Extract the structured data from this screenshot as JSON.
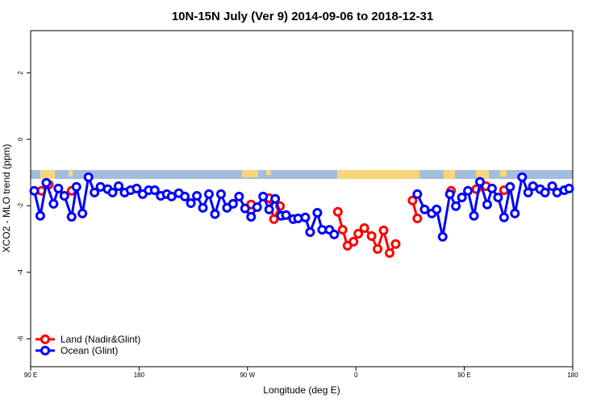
{
  "chart_data": {
    "type": "line",
    "title": "10N-15N July (Ver 9)   2014-09-06 to 2018-12-31",
    "x_label": "Longitude (deg E)",
    "y_label": "XCO2 - MLO trend (ppm)",
    "xlim": [
      90,
      540
    ],
    "ylim": [
      -6.84,
      3.27
    ],
    "xticks": [
      {
        "value": 90,
        "label": "90 E"
      },
      180,
      {
        "value": 270,
        "label": "90 W"
      },
      {
        "value": 360,
        "label": "0"
      },
      {
        "value": 450,
        "label": "90 E"
      },
      {
        "value": 540,
        "label": "180"
      }
    ],
    "yticks": [
      -6,
      -4,
      -2,
      0,
      2
    ],
    "legend": "bottom-left",
    "series": [
      {
        "name": "Land (Nadir&Glint)",
        "color": "#ff0000",
        "x": [
          99,
          105,
          110,
          124,
          200,
          273,
          280,
          288,
          292,
          297,
          320,
          345,
          349,
          353,
          358,
          362,
          367,
          373,
          378,
          383,
          388,
          393,
          400,
          407,
          411,
          420,
          439,
          445,
          460,
          468,
          475,
          483
        ],
        "values": [
          -1.55,
          -1.36,
          null,
          -1.55,
          null,
          -1.96,
          null,
          -1.77,
          -2.4,
          -2.01,
          null,
          -2.18,
          -2.72,
          -3.2,
          -3.08,
          -2.84,
          -2.67,
          -2.91,
          -3.3,
          -2.74,
          -3.42,
          -3.15,
          null,
          -1.84,
          -2.38,
          null,
          -1.55,
          null,
          -1.5,
          -1.41,
          null,
          -1.53
        ]
      },
      {
        "name": "Ocean (Glint)",
        "color": "#0000ff",
        "x": [
          93,
          98,
          103,
          109,
          113,
          118,
          124,
          128,
          133,
          138,
          143,
          148,
          154,
          158,
          163,
          168,
          173,
          178,
          183,
          188,
          193,
          198,
          203,
          207,
          213,
          218,
          223,
          228,
          233,
          238,
          243,
          248,
          253,
          258,
          263,
          268,
          273,
          278,
          283,
          288,
          293,
          298,
          302,
          308,
          312,
          318,
          322,
          328,
          332,
          338,
          342,
          377,
          411,
          417,
          423,
          427,
          432,
          438,
          443,
          448,
          453,
          458,
          463,
          469,
          473,
          478,
          483,
          488,
          492,
          498,
          503,
          507,
          513,
          517,
          523,
          527,
          533,
          537
        ],
        "values": [
          -1.55,
          -2.3,
          -1.31,
          -1.94,
          -1.48,
          -1.7,
          -2.33,
          -1.43,
          -2.23,
          -1.14,
          -1.6,
          -1.43,
          -1.5,
          -1.6,
          -1.41,
          -1.6,
          -1.53,
          -1.48,
          -1.65,
          -1.53,
          -1.53,
          -1.7,
          -1.65,
          -1.72,
          -1.62,
          -1.72,
          -1.92,
          -1.7,
          -2.06,
          -1.65,
          -2.25,
          -1.65,
          -2.06,
          -1.94,
          -1.72,
          -2.08,
          -2.33,
          -2.04,
          -1.72,
          -2.11,
          -1.79,
          -2.3,
          -2.28,
          -2.4,
          -2.38,
          -2.35,
          -2.79,
          -2.21,
          -2.72,
          -2.72,
          -2.86,
          null,
          -1.65,
          -2.11,
          -2.23,
          -2.11,
          -2.93,
          -1.65,
          -2.01,
          -1.75,
          -1.55,
          -2.3,
          -1.28,
          -1.96,
          -1.48,
          -1.75,
          -2.35,
          -1.43,
          -2.23,
          -1.14,
          -1.6,
          -1.41,
          -1.5,
          -1.6,
          -1.41,
          -1.6,
          -1.53,
          -1.48
        ]
      }
    ]
  }
}
